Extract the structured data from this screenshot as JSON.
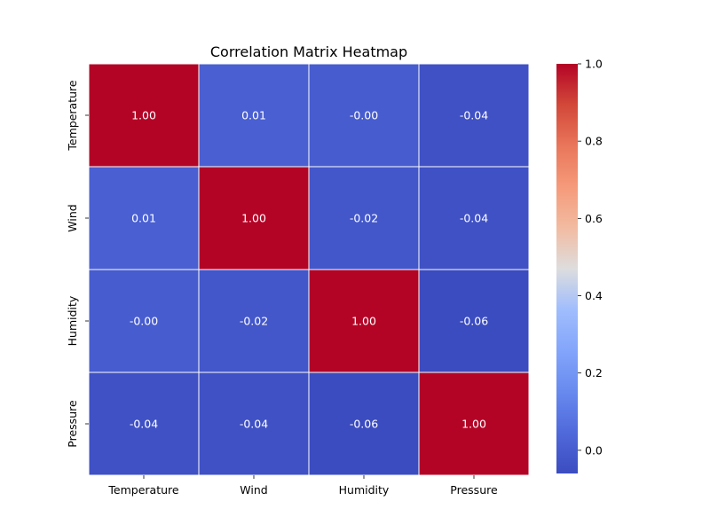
{
  "chart_data": {
    "type": "heatmap",
    "title": "Correlation Matrix Heatmap",
    "row_labels": [
      "Temperature",
      "Wind",
      "Humidity",
      "Pressure"
    ],
    "col_labels": [
      "Temperature",
      "Wind",
      "Humidity",
      "Pressure"
    ],
    "values": [
      [
        1.0,
        0.01,
        -0.0,
        -0.04
      ],
      [
        0.01,
        1.0,
        -0.02,
        -0.04
      ],
      [
        -0.0,
        -0.02,
        1.0,
        -0.06
      ],
      [
        -0.04,
        -0.04,
        -0.06,
        1.0
      ]
    ],
    "cell_text": [
      [
        "1.00",
        "0.01",
        "-0.00",
        "-0.04"
      ],
      [
        "0.01",
        "1.00",
        "-0.02",
        "-0.04"
      ],
      [
        "-0.00",
        "-0.02",
        "1.00",
        "-0.06"
      ],
      [
        "-0.04",
        "-0.04",
        "-0.06",
        "1.00"
      ]
    ],
    "colormap": "coolwarm",
    "colorbar": {
      "range": [
        -0.06,
        1.0
      ],
      "ticks": [
        0.0,
        0.2,
        0.4,
        0.6,
        0.8,
        1.0
      ],
      "tick_labels": [
        "0.0",
        "0.2",
        "0.4",
        "0.6",
        "0.8",
        "1.0"
      ]
    },
    "colors": {
      "high": "#b40426",
      "mid": "#dddddd",
      "low": "#3b4cc0"
    }
  }
}
